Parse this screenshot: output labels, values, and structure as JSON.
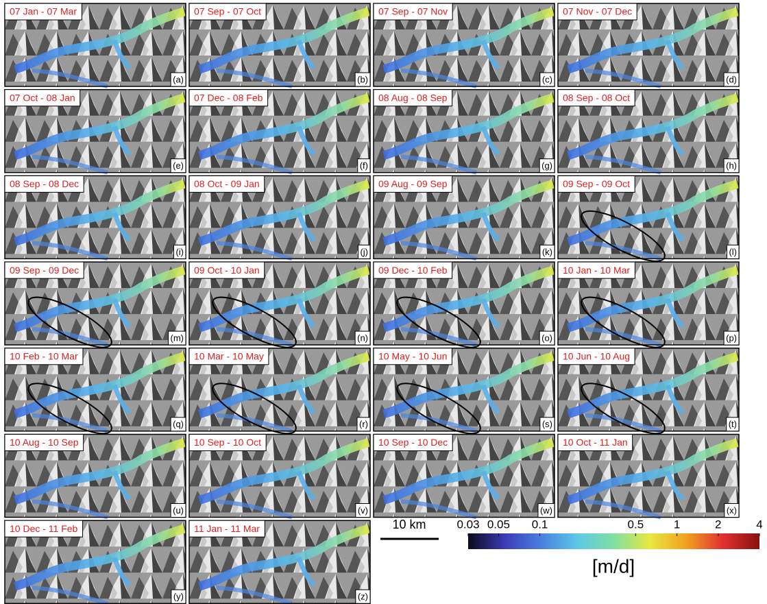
{
  "panels": [
    {
      "label": "07 Jan - 07 Mar",
      "letter": "(a)"
    },
    {
      "label": "07 Sep - 07 Oct",
      "letter": "(b)"
    },
    {
      "label": "07 Sep - 07 Nov",
      "letter": "(c)"
    },
    {
      "label": "07 Nov - 07 Dec",
      "letter": "(d)"
    },
    {
      "label": "07 Oct - 08 Jan",
      "letter": "(e)"
    },
    {
      "label": "07 Dec - 08 Feb",
      "letter": "(f)"
    },
    {
      "label": "08 Aug - 08 Sep",
      "letter": "(g)"
    },
    {
      "label": "08 Sep - 08 Oct",
      "letter": "(h)"
    },
    {
      "label": "08 Sep - 08 Dec",
      "letter": "(i)"
    },
    {
      "label": "08 Oct - 09 Jan",
      "letter": "(j)"
    },
    {
      "label": "09 Aug - 09 Sep",
      "letter": "(k)"
    },
    {
      "label": "09 Sep - 09 Oct",
      "letter": "(l)"
    },
    {
      "label": "09 Sep - 09 Dec",
      "letter": "(m)"
    },
    {
      "label": "09 Oct - 10 Jan",
      "letter": "(n)"
    },
    {
      "label": "09 Dec - 10 Feb",
      "letter": "(o)"
    },
    {
      "label": "10 Jan - 10 Mar",
      "letter": "(p)"
    },
    {
      "label": "10 Feb - 10 Mar",
      "letter": "(q)"
    },
    {
      "label": "10 Mar - 10 May",
      "letter": "(r)"
    },
    {
      "label": "10 May - 10 Jun",
      "letter": "(s)"
    },
    {
      "label": "10 Jun - 10 Aug",
      "letter": "(t)"
    },
    {
      "label": "10 Aug - 10 Sep",
      "letter": "(u)"
    },
    {
      "label": "10 Sep - 10 Oct",
      "letter": "(v)"
    },
    {
      "label": "10 Sep - 10 Dec",
      "letter": "(w)"
    },
    {
      "label": "10 Oct - 11 Jan",
      "letter": "(x)"
    },
    {
      "label": "10 Dec - 11 Feb",
      "letter": "(y)"
    },
    {
      "label": "11 Jan - 11 Mar",
      "letter": "(z)"
    }
  ],
  "scale_bar": "10 km",
  "colorbar": {
    "lim": [
      0.03,
      4
    ],
    "log": true,
    "ticks": [
      0.03,
      0.05,
      0.1,
      0.5,
      1,
      2,
      4
    ],
    "unit": "[m/d]",
    "colors": [
      "#0b0b1e",
      "#3b3bb5",
      "#4a7fe0",
      "#5ec8e8",
      "#7fe0a0",
      "#e8e840",
      "#f0a020",
      "#e03030",
      "#8a1010"
    ]
  }
}
